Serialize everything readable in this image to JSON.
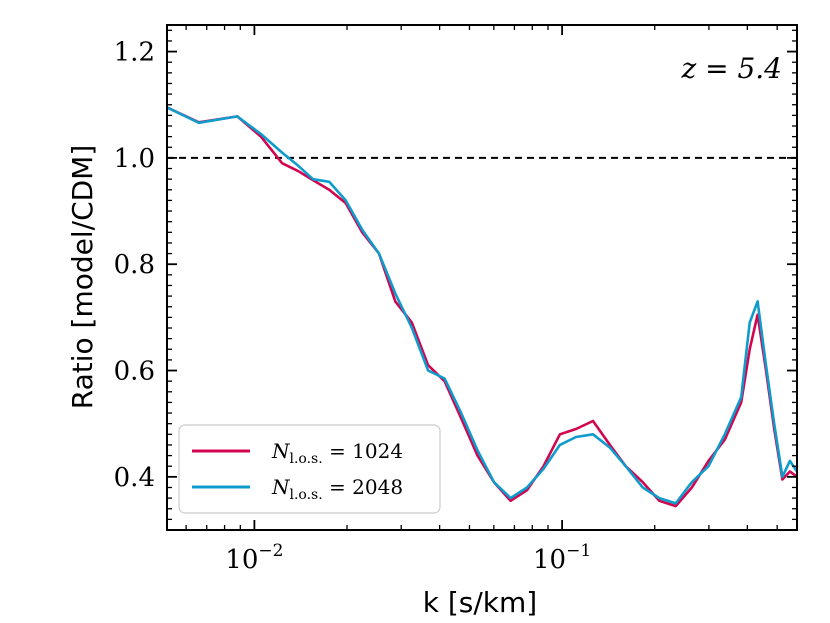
{
  "chart_data": {
    "type": "line",
    "title": "",
    "annotation": "z = 5.4",
    "xlabel": "k [s/km]",
    "ylabel": "Ratio [model/CDM]",
    "xscale": "log",
    "xlim": [
      0.0052,
      0.58
    ],
    "ylim": [
      0.3,
      1.25
    ],
    "xticks": [
      {
        "value": 0.01,
        "base": "10",
        "exp": "−2"
      },
      {
        "value": 0.1,
        "base": "10",
        "exp": "−1"
      }
    ],
    "yticks": [
      {
        "value": 0.4,
        "label": "0.4"
      },
      {
        "value": 0.6,
        "label": "0.6"
      },
      {
        "value": 0.8,
        "label": "0.8"
      },
      {
        "value": 1.0,
        "label": "1.0"
      },
      {
        "value": 1.2,
        "label": "1.2"
      }
    ],
    "reference_line": {
      "y": 1.0,
      "style": "dashed",
      "color": "#000000"
    },
    "legend": {
      "location": "lower-left"
    },
    "series": [
      {
        "name": "N_l.o.s. = 1024",
        "label_main": "N",
        "label_sub": "l.o.s.",
        "label_rest": " = 1024",
        "color": "#d1064f",
        "x": [
          0.0052,
          0.0066,
          0.0088,
          0.0105,
          0.0123,
          0.0139,
          0.0155,
          0.0175,
          0.0198,
          0.0224,
          0.0254,
          0.0287,
          0.0325,
          0.0367,
          0.0415,
          0.047,
          0.0531,
          0.0601,
          0.068,
          0.0769,
          0.087,
          0.0984,
          0.111,
          0.126,
          0.143,
          0.161,
          0.183,
          0.207,
          0.234,
          0.264,
          0.299,
          0.338,
          0.382,
          0.407,
          0.432,
          0.46,
          0.489,
          0.52,
          0.55,
          0.58
        ],
        "y": [
          1.095,
          1.067,
          1.078,
          1.04,
          0.99,
          0.975,
          0.958,
          0.94,
          0.915,
          0.86,
          0.82,
          0.73,
          0.69,
          0.61,
          0.58,
          0.51,
          0.44,
          0.39,
          0.355,
          0.375,
          0.42,
          0.48,
          0.49,
          0.505,
          0.46,
          0.42,
          0.39,
          0.355,
          0.345,
          0.38,
          0.43,
          0.47,
          0.54,
          0.64,
          0.705,
          0.6,
          0.49,
          0.395,
          0.41,
          0.4
        ]
      },
      {
        "name": "N_l.o.s. = 2048",
        "label_main": "N",
        "label_sub": "l.o.s.",
        "label_rest": " = 2048",
        "color": "#0f9ccc",
        "x": [
          0.0052,
          0.0066,
          0.0088,
          0.0105,
          0.0123,
          0.0139,
          0.0155,
          0.0175,
          0.0198,
          0.0224,
          0.0254,
          0.0287,
          0.0325,
          0.0367,
          0.0415,
          0.047,
          0.0531,
          0.0601,
          0.068,
          0.0769,
          0.087,
          0.0984,
          0.111,
          0.126,
          0.143,
          0.161,
          0.183,
          0.207,
          0.234,
          0.264,
          0.299,
          0.338,
          0.382,
          0.407,
          0.432,
          0.46,
          0.489,
          0.52,
          0.55,
          0.58
        ],
        "y": [
          1.095,
          1.066,
          1.078,
          1.045,
          1.01,
          0.985,
          0.96,
          0.955,
          0.92,
          0.865,
          0.82,
          0.745,
          0.68,
          0.6,
          0.585,
          0.52,
          0.45,
          0.39,
          0.36,
          0.38,
          0.415,
          0.46,
          0.475,
          0.48,
          0.455,
          0.42,
          0.38,
          0.36,
          0.35,
          0.39,
          0.42,
          0.48,
          0.55,
          0.69,
          0.73,
          0.61,
          0.5,
          0.4,
          0.43,
          0.41
        ]
      }
    ]
  }
}
